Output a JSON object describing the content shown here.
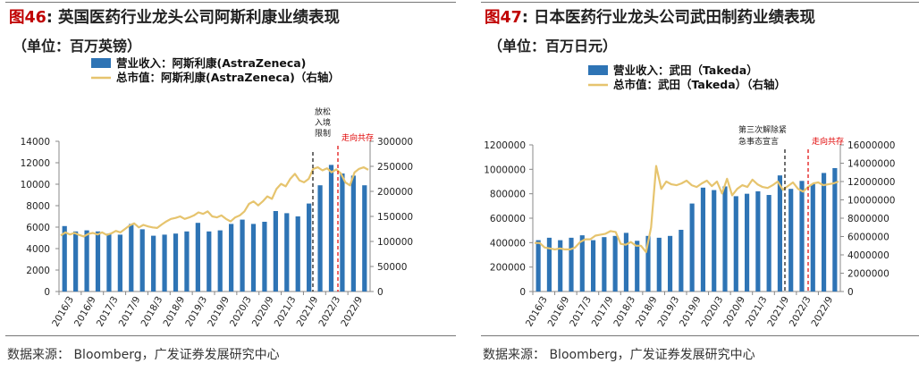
{
  "charts": [
    {
      "fig_label": "图46",
      "title": "英国医药行业龙头公司阿斯利康业绩表现",
      "unit": "（单位：百万英镑）",
      "source": "数据来源：   Bloomberg，广发证券发展研究中心"
    },
    {
      "fig_label": "图47",
      "title": "日本医药行业龙头公司武田制药业绩表现",
      "unit": "（单位：百万日元）",
      "source": "数据来源：   Bloomberg，广发证券发展研究中心"
    }
  ],
  "colors": {
    "bar": "#2e74b5",
    "line": "#e6c46e",
    "red": "#e00000",
    "title_red": "#c00000"
  },
  "chart_data": [
    {
      "type": "bar",
      "title": "英国医药行业龙头公司阿斯利康业绩表现",
      "x_tick_labels": [
        "2016/3",
        "2016/9",
        "2017/3",
        "2017/9",
        "2018/3",
        "2018/9",
        "2019/3",
        "2019/9",
        "2020/3",
        "2020/9",
        "2021/3",
        "2021/9",
        "2022/3",
        "2022/9"
      ],
      "ylim": [
        0,
        14000
      ],
      "yticks": [
        "0",
        "2000",
        "4000",
        "6000",
        "8000",
        "10000",
        "12000",
        "14000"
      ],
      "y2lim": [
        0,
        300000
      ],
      "y2ticks": [
        "0",
        "50000",
        "100000",
        "150000",
        "200000",
        "250000",
        "300000"
      ],
      "series": [
        {
          "name": "营业收入：阿斯利康(AstraZeneca)",
          "type": "bar",
          "values": [
            6100,
            5600,
            5700,
            5600,
            5400,
            5300,
            6300,
            5800,
            5200,
            5300,
            5400,
            5600,
            6400,
            5600,
            5700,
            6300,
            6700,
            6300,
            6500,
            7500,
            7300,
            7000,
            8200,
            9900,
            11800,
            11000,
            10800,
            9900
          ]
        },
        {
          "name": "总市值：阿斯利康(AstraZeneca)（右轴）",
          "type": "line",
          "axis": "right",
          "values": [
            112000,
            118000,
            114000,
            117000,
            113000,
            110000,
            115000,
            117000,
            114000,
            118000,
            113000,
            116000,
            121000,
            118000,
            125000,
            132000,
            136000,
            128000,
            133000,
            130000,
            128000,
            127000,
            134000,
            140000,
            145000,
            147000,
            150000,
            145000,
            148000,
            152000,
            158000,
            155000,
            160000,
            150000,
            148000,
            152000,
            145000,
            140000,
            148000,
            152000,
            160000,
            175000,
            180000,
            172000,
            180000,
            190000,
            185000,
            205000,
            215000,
            210000,
            225000,
            235000,
            222000,
            218000,
            225000,
            245000,
            248000,
            242000,
            246000,
            238000,
            244000,
            236000,
            218000,
            212000,
            238000,
            245000,
            248000,
            243000
          ]
        }
      ],
      "annotations": [
        "放松入境限制",
        "走向共存"
      ]
    },
    {
      "type": "bar",
      "title": "日本医药行业龙头公司武田制药业绩表现",
      "x_tick_labels": [
        "2016/3",
        "2016/9",
        "2017/3",
        "2017/9",
        "2018/3",
        "2018/9",
        "2019/3",
        "2019/9",
        "2020/3",
        "2020/9",
        "2021/3",
        "2021/9",
        "2022/3",
        "2022/9"
      ],
      "ylim": [
        0,
        1200000
      ],
      "yticks": [
        "0",
        "200000",
        "400000",
        "600000",
        "800000",
        "1000000",
        "1200000"
      ],
      "y2lim": [
        0,
        16000000
      ],
      "y2ticks": [
        "0",
        "2000000",
        "4000000",
        "6000000",
        "8000000",
        "10000000",
        "12000000",
        "14000000",
        "16000000"
      ],
      "series": [
        {
          "name": "营业收入：武田（Takeda）",
          "type": "bar",
          "values": [
            420000,
            440000,
            420000,
            440000,
            460000,
            420000,
            445000,
            455000,
            480000,
            415000,
            455000,
            440000,
            455000,
            505000,
            720000,
            850000,
            830000,
            860000,
            780000,
            800000,
            820000,
            790000,
            950000,
            840000,
            905000,
            880000,
            970000,
            1010000
          ]
        },
        {
          "name": "总市值：武田（Takeda）（右轴）",
          "type": "line",
          "axis": "right",
          "values": [
            5300000,
            5300000,
            4800000,
            4700000,
            4600000,
            4700000,
            4600000,
            4600000,
            4800000,
            5400000,
            5700000,
            5700000,
            6100000,
            6200000,
            6300000,
            6600000,
            6500000,
            5200000,
            5100000,
            5400000,
            5000000,
            5000000,
            4300000,
            7000000,
            13700000,
            11200000,
            12000000,
            11700000,
            11600000,
            11800000,
            12100000,
            11600000,
            11400000,
            11800000,
            12100000,
            11500000,
            12000000,
            10700000,
            12300000,
            10500000,
            11200000,
            11600000,
            11400000,
            12200000,
            11700000,
            11400000,
            11300000,
            11600000,
            12000000,
            11100000,
            11500000,
            11900000,
            11200000,
            10900000,
            11400000,
            11800000,
            11900000,
            11600000,
            11700000,
            11800000,
            12000000
          ]
        }
      ],
      "annotations": [
        "第三次解除紧急事态宣言",
        "走向共存"
      ]
    }
  ]
}
